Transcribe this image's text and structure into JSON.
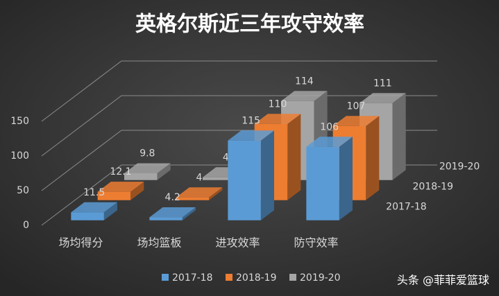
{
  "chart_data": {
    "type": "bar3d",
    "title": "英格尔斯近三年攻守效率",
    "categories": [
      "场均得分",
      "场均篮板",
      "进攻效率",
      "防守效率"
    ],
    "series": [
      {
        "name": "2017-18",
        "color": "#5b9bd5",
        "values": [
          11.5,
          4.2,
          115,
          106
        ]
      },
      {
        "name": "2018-19",
        "color": "#ed7d31",
        "values": [
          12.1,
          4,
          110,
          107
        ]
      },
      {
        "name": "2019-20",
        "color": "#a5a5a5",
        "values": [
          9.8,
          4,
          114,
          111
        ]
      }
    ],
    "ylim": [
      0,
      150
    ],
    "yticks": [
      0,
      50,
      100,
      150
    ],
    "grid": true,
    "legend": "bottom"
  },
  "watermark": "头条 @菲菲爱篮球"
}
